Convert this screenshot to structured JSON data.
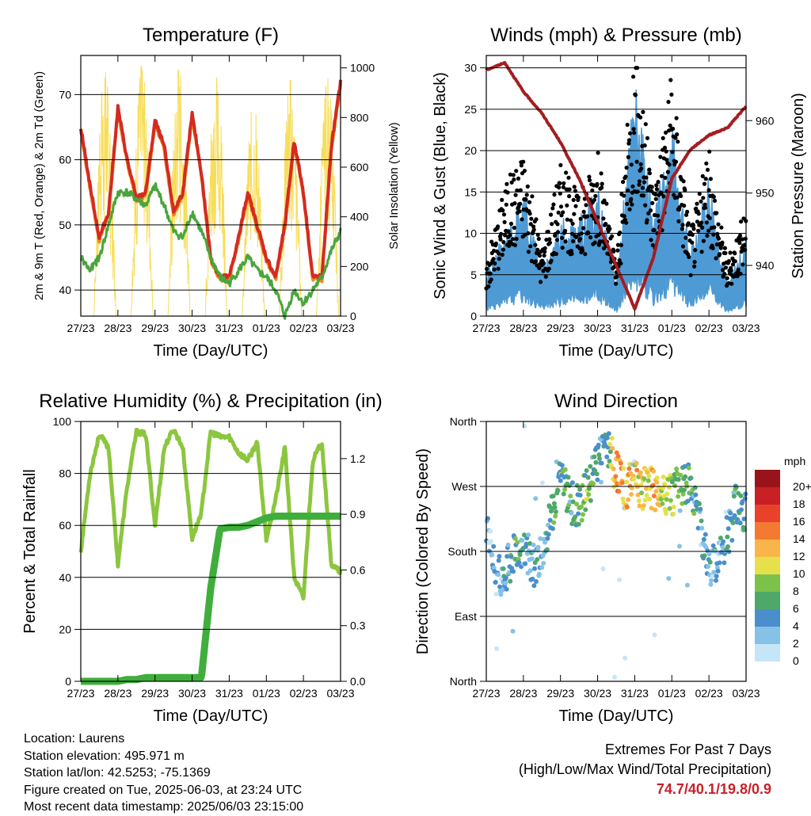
{
  "colors": {
    "temp": "#d42a22",
    "temp9": "#f08a1a",
    "dew": "#4aa53c",
    "solar": "#f7dd5a",
    "gust": "#000000",
    "wind": "#4e9ad4",
    "pressure": "#a31e22",
    "rh": "#8cc63f",
    "rain": "#3fae3c"
  },
  "x_ticks": [
    "27/23",
    "28/23",
    "29/23",
    "30/23",
    "31/23",
    "01/23",
    "02/23",
    "03/23"
  ],
  "charts": {
    "temp": {
      "title": "Temperature (F)",
      "ylabel": "2m & 9m T (Red, Orange) & 2m Td (Green)",
      "y2label": "Solar Insolation (Yellow)",
      "xlabel": "Time (Day/UTC)",
      "yticks": [
        "40",
        "50",
        "60",
        "70"
      ],
      "y2ticks": [
        "0",
        "200",
        "400",
        "600",
        "800",
        "1000"
      ]
    },
    "wind": {
      "title": "Winds (mph) & Pressure (mb)",
      "ylabel": "Sonic Wind & Gust (Blue, Black)",
      "y2label": "Station Pressure (Maroon)",
      "xlabel": "Time (Day/UTC)",
      "yticks": [
        "0",
        "5",
        "10",
        "15",
        "20",
        "25",
        "30"
      ],
      "y2ticks": [
        "940",
        "950",
        "960"
      ]
    },
    "rh": {
      "title": "Relative Humidity (%) & Precipitation (in)",
      "ylabel": "Percent & Total Rainfall",
      "xlabel": "Time (Day/UTC)",
      "yticks": [
        "0",
        "20",
        "40",
        "60",
        "80",
        "100"
      ],
      "y2ticks": [
        "0.0",
        "0.3",
        "0.6",
        "0.9",
        "1.2"
      ]
    },
    "dir": {
      "title": "Wind Direction",
      "ylabel": "Direction (Colored By Speed)",
      "xlabel": "Time (Day/UTC)",
      "yticks": [
        "North",
        "East",
        "South",
        "West",
        "North"
      ],
      "legend_title": "mph",
      "legend_labels": [
        "0",
        "2",
        "4",
        "6",
        "8",
        "10",
        "12",
        "14",
        "16",
        "18",
        "20+"
      ],
      "legend_colors": [
        "#c6e6f7",
        "#86c1e8",
        "#4a8fcc",
        "#4ea86a",
        "#7cc24a",
        "#e6e04a",
        "#f9b54a",
        "#f47a32",
        "#e8432a",
        "#c82024",
        "#98141a"
      ]
    }
  },
  "info": {
    "location": "Location: Laurens",
    "elevation": "Station elevation: 495.971 m",
    "latlon": "Station lat/lon: 42.5253; -75.1369",
    "created": "Figure created on Tue, 2025-06-03, at 23:24 UTC",
    "recent": "Most recent data timestamp: 2025/06/03 23:15:00"
  },
  "extremes": {
    "title": "Extremes For Past 7 Days",
    "subtitle": "(High/Low/Max Wind/Total Precipitation)",
    "values": "74.7/40.1/19.8/0.9"
  },
  "chart_data": [
    {
      "type": "line",
      "title": "Temperature (F)",
      "xlabel": "Time (Day/UTC)",
      "ylabel": "2m & 9m T (Red, Orange) & 2m Td (Green)",
      "y2label": "Solar Insolation (Yellow)",
      "x": [
        0,
        0.25,
        0.5,
        0.75,
        1,
        1.25,
        1.5,
        1.75,
        2,
        2.25,
        2.5,
        2.75,
        3,
        3.25,
        3.5,
        3.75,
        4,
        4.25,
        4.5,
        4.75,
        5,
        5.25,
        5.5,
        5.75,
        6,
        6.25,
        6.5,
        6.75,
        7
      ],
      "x_tick_labels": [
        "27/23",
        "28/23",
        "29/23",
        "30/23",
        "31/23",
        "01/23",
        "02/23",
        "03/23"
      ],
      "ylim": [
        36,
        76
      ],
      "y2lim": [
        0,
        1050
      ],
      "series": [
        {
          "name": "2m T",
          "values": [
            65,
            56,
            48,
            52,
            68,
            60,
            54,
            55,
            66,
            62,
            52,
            55,
            67,
            58,
            45,
            42,
            42,
            48,
            55,
            50,
            45,
            42,
            50,
            63,
            55,
            42,
            42,
            62,
            72
          ]
        },
        {
          "name": "2m Td",
          "values": [
            45,
            43,
            45,
            50,
            55,
            55,
            54,
            53,
            56,
            53,
            49,
            48,
            52,
            49,
            45,
            42,
            41,
            43,
            45,
            43,
            42,
            40,
            36,
            40,
            38,
            40,
            42,
            46,
            49
          ]
        }
      ],
      "solar_peak": [
        990,
        1010,
        995,
        985,
        870,
        950,
        960
      ]
    },
    {
      "type": "scatter",
      "title": "Winds (mph) & Pressure (mb)",
      "xlabel": "Time (Day/UTC)",
      "ylabel": "Sonic Wind & Gust (Blue, Black)",
      "y2label": "Station Pressure (Maroon)",
      "x": [
        0,
        0.5,
        1,
        1.5,
        2,
        2.5,
        3,
        3.5,
        4,
        4.5,
        5,
        5.5,
        6,
        6.5,
        7
      ],
      "x_tick_labels": [
        "27/23",
        "28/23",
        "29/23",
        "30/23",
        "31/23",
        "01/23",
        "02/23",
        "03/23"
      ],
      "ylim": [
        0,
        31.5
      ],
      "y2lim": [
        933,
        969
      ],
      "series": [
        {
          "name": "Gust",
          "values": [
            5,
            12,
            15,
            6,
            14,
            11,
            15,
            5,
            25,
            12,
            22,
            8,
            15,
            5,
            10
          ]
        },
        {
          "name": "Wind",
          "values": [
            3,
            5,
            8,
            3,
            6,
            6,
            8,
            2,
            15,
            6,
            12,
            4,
            9,
            2,
            5
          ]
        },
        {
          "name": "Pressure",
          "values": [
            967,
            968,
            964,
            961,
            957,
            952,
            946,
            940,
            934,
            941,
            952,
            956,
            958,
            959,
            962
          ]
        }
      ]
    },
    {
      "type": "line",
      "title": "Relative Humidity (%) & Precipitation (in)",
      "xlabel": "Time (Day/UTC)",
      "ylabel": "Percent & Total Rainfall",
      "x": [
        0,
        0.25,
        0.5,
        0.75,
        1,
        1.25,
        1.5,
        1.75,
        2,
        2.25,
        2.5,
        2.75,
        3,
        3.25,
        3.5,
        3.75,
        4,
        4.25,
        4.5,
        4.75,
        5,
        5.25,
        5.5,
        5.75,
        6,
        6.25,
        6.5,
        6.75,
        7
      ],
      "x_tick_labels": [
        "27/23",
        "28/23",
        "29/23",
        "30/23",
        "31/23",
        "01/23",
        "02/23",
        "03/23"
      ],
      "ylim": [
        0,
        100
      ],
      "y2lim": [
        0,
        1.4
      ],
      "series": [
        {
          "name": "RH",
          "values": [
            50,
            80,
            95,
            90,
            45,
            75,
            96,
            95,
            60,
            90,
            97,
            90,
            55,
            65,
            96,
            94,
            94,
            88,
            85,
            92,
            55,
            70,
            90,
            40,
            32,
            85,
            92,
            45,
            42
          ]
        },
        {
          "name": "Total Rainfall",
          "values": [
            0,
            0,
            0,
            0,
            0,
            0.01,
            0.01,
            0.02,
            0.02,
            0.02,
            0.02,
            0.02,
            0.02,
            0.02,
            0.5,
            0.82,
            0.83,
            0.83,
            0.84,
            0.86,
            0.88,
            0.89,
            0.89,
            0.89,
            0.89,
            0.89,
            0.89,
            0.89,
            0.89
          ]
        }
      ]
    },
    {
      "type": "scatter",
      "title": "Wind Direction",
      "xlabel": "Time (Day/UTC)",
      "ylabel": "Direction (Colored By Speed)",
      "x": [
        0,
        0.25,
        0.5,
        0.75,
        1,
        1.25,
        1.5,
        1.75,
        2,
        2.25,
        2.5,
        2.75,
        3,
        3.25,
        3.5,
        3.75,
        4,
        4.25,
        4.5,
        4.75,
        5,
        5.25,
        5.5,
        5.75,
        6,
        6.25,
        6.5,
        6.75,
        7
      ],
      "x_tick_labels": [
        "27/23",
        "28/23",
        "29/23",
        "30/23",
        "31/23",
        "01/23",
        "02/23",
        "03/23"
      ],
      "ylim": [
        0,
        360
      ],
      "y_tick_labels": [
        "North",
        "East",
        "South",
        "West",
        "North"
      ],
      "series": [
        {
          "name": "Direction",
          "values": [
            220,
            150,
            150,
            180,
            190,
            160,
            170,
            230,
            280,
            250,
            240,
            270,
            300,
            330,
            290,
            270,
            275,
            265,
            270,
            255,
            260,
            270,
            275,
            220,
            160,
            160,
            200,
            250,
            230
          ]
        },
        {
          "name": "Speed",
          "values": [
            2,
            3,
            3,
            6,
            4,
            3,
            3,
            5,
            7,
            5,
            6,
            8,
            5,
            4,
            14,
            12,
            11,
            10,
            12,
            9,
            8,
            7,
            6,
            4,
            3,
            3,
            4,
            6,
            5
          ]
        }
      ]
    }
  ]
}
